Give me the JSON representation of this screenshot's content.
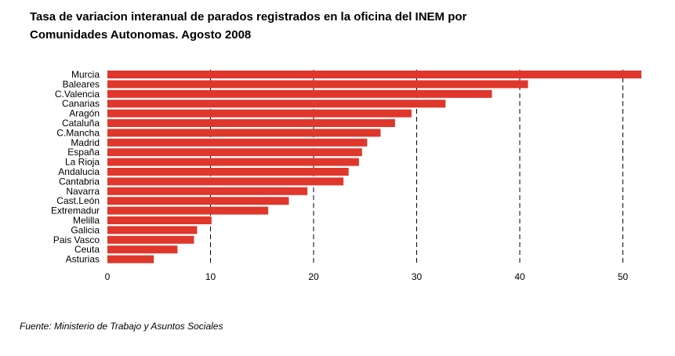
{
  "title_line1": "Tasa de variacion interanual de parados registrados en la oficina del INEM por",
  "title_line2": "Comunidades Autonomas. Agosto 2008",
  "source": "Fuente: Ministerio de Trabajo y Asuntos Sociales",
  "chart_data": {
    "type": "bar",
    "orientation": "horizontal",
    "title": "Tasa de variacion interanual de parados registrados en la oficina del INEM por Comunidades Autonomas. Agosto 2008",
    "categories": [
      "Murcia",
      "Baleares",
      "C.Valencia",
      "Canarias",
      "Aragón",
      "Cataluña",
      "C.Mancha",
      "Madrid",
      "España",
      "La Rioja",
      "Andalucia",
      "Cantabria",
      "Navarra",
      "Cast.León",
      "Extremadur",
      "Melilla",
      "Galicia",
      "Pais Vasco",
      "Ceuta",
      "Asturias"
    ],
    "values": [
      51.8,
      40.8,
      37.3,
      32.8,
      29.5,
      27.9,
      26.5,
      25.2,
      24.7,
      24.4,
      23.4,
      22.9,
      19.4,
      17.6,
      15.6,
      10.1,
      8.7,
      8.4,
      6.8,
      4.5
    ],
    "xlim": [
      0,
      52
    ],
    "xticks": [
      0,
      10,
      20,
      30,
      40,
      50
    ],
    "grid": "vertical dashed at 10,20,30,40,50",
    "bar_color": "#e0372c",
    "xlabel": "",
    "ylabel": ""
  }
}
